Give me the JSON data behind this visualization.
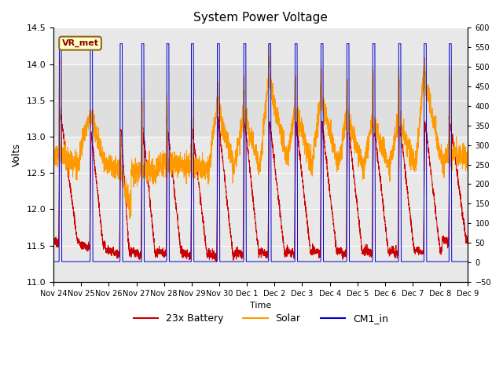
{
  "title": "System Power Voltage",
  "xlabel": "Time",
  "ylabel": "Volts",
  "ylim_left": [
    11.0,
    14.5
  ],
  "ylim_right": [
    -50,
    600
  ],
  "yticks_left": [
    11.0,
    11.5,
    12.0,
    12.5,
    13.0,
    13.5,
    14.0,
    14.5
  ],
  "yticks_right": [
    -50,
    0,
    50,
    100,
    150,
    200,
    250,
    300,
    350,
    400,
    450,
    500,
    550,
    600
  ],
  "xtick_labels": [
    "Nov 24",
    "Nov 25",
    "Nov 26",
    "Nov 27",
    "Nov 28",
    "Nov 29",
    "Nov 30",
    "Dec 1",
    "Dec 2",
    "Dec 3",
    "Dec 4",
    "Dec 5",
    "Dec 6",
    "Dec 7",
    "Dec 8",
    "Dec 9"
  ],
  "annotation_text": "VR_met",
  "colors": {
    "battery": "#cc0000",
    "solar": "#ff9900",
    "cm1": "#0000cc"
  },
  "legend": [
    "23x Battery",
    "Solar",
    "CM1_in"
  ],
  "figsize": [
    6.4,
    4.8
  ],
  "dpi": 100,
  "bg_band_low": 13.0,
  "bg_band_high": 14.0
}
